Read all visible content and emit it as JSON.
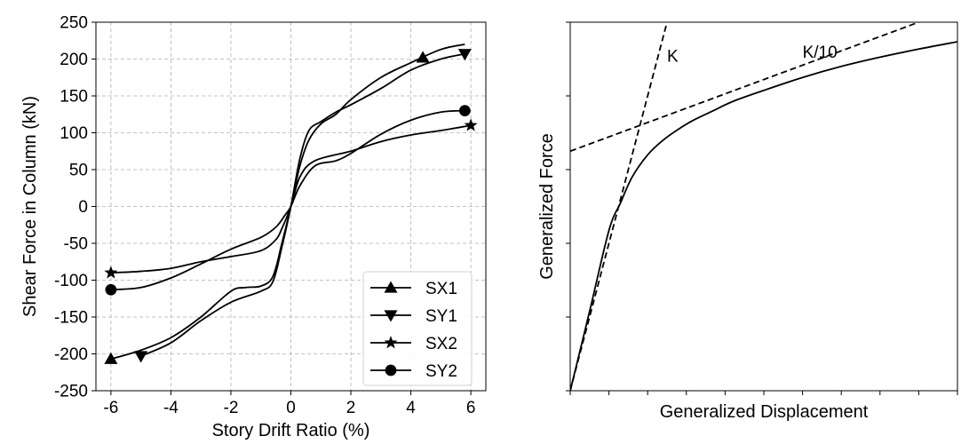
{
  "chart_data": [
    {
      "type": "line",
      "xlabel": "Story Drift Ratio (%)",
      "ylabel": "Shear Force in Column (kN)",
      "xlim": [
        -6.5,
        6.5
      ],
      "ylim": [
        -250,
        250
      ],
      "xticks": [
        -6,
        -4,
        -2,
        0,
        2,
        4,
        6
      ],
      "yticks": [
        -250,
        -200,
        -150,
        -100,
        -50,
        0,
        50,
        100,
        150,
        200,
        250
      ],
      "grid": true,
      "legend_position": "lower-right",
      "series": [
        {
          "name": "SX1",
          "marker": "triangle-up",
          "x": [
            -6.0,
            -5.0,
            -4.0,
            -3.0,
            -2.0,
            -1.5,
            -1.0,
            -0.6,
            -0.3,
            0,
            0.3,
            0.6,
            1.0,
            1.5,
            2.0,
            3.0,
            4.0,
            5.0,
            5.8
          ],
          "y": [
            -207,
            -195,
            -178,
            -150,
            -115,
            -110,
            -108,
            -95,
            -50,
            0,
            55,
            90,
            112,
            125,
            145,
            175,
            195,
            213,
            220
          ],
          "marker_points": [
            [
              -6.0,
              -207
            ],
            [
              4.4,
              202
            ]
          ]
        },
        {
          "name": "SY1",
          "marker": "triangle-down",
          "x": [
            -5.0,
            -4.0,
            -3.0,
            -2.0,
            -1.0,
            -0.6,
            -0.3,
            0,
            0.3,
            0.6,
            1.0,
            1.5,
            2.0,
            3.0,
            4.0,
            5.0,
            5.8
          ],
          "y": [
            -203,
            -185,
            -155,
            -130,
            -115,
            -102,
            -55,
            0,
            65,
            103,
            115,
            128,
            138,
            160,
            185,
            200,
            207
          ],
          "marker_points": [
            [
              -5.0,
              -203
            ],
            [
              5.8,
              207
            ]
          ]
        },
        {
          "name": "SX2",
          "marker": "star",
          "x": [
            -6.0,
            -5.0,
            -4.0,
            -3.0,
            -2.0,
            -1.0,
            -0.5,
            -0.3,
            0,
            0.3,
            0.8,
            2.0,
            3.0,
            4.0,
            5.0,
            6.0
          ],
          "y": [
            -90,
            -88,
            -84,
            -75,
            -68,
            -60,
            -45,
            -30,
            0,
            40,
            62,
            75,
            88,
            97,
            103,
            110
          ],
          "marker_points": [
            [
              -6.0,
              -90
            ],
            [
              6.0,
              110
            ]
          ]
        },
        {
          "name": "SY2",
          "marker": "circle",
          "x": [
            -6.0,
            -5.0,
            -4.0,
            -3.0,
            -2.0,
            -1.0,
            -0.5,
            -0.2,
            0,
            0.3,
            0.8,
            1.5,
            2.0,
            3.0,
            4.0,
            5.0,
            5.8
          ],
          "y": [
            -113,
            -110,
            -97,
            -78,
            -58,
            -42,
            -28,
            -12,
            0,
            28,
            55,
            62,
            72,
            98,
            117,
            128,
            130
          ],
          "marker_points": [
            [
              -6.0,
              -113
            ],
            [
              5.8,
              130
            ]
          ]
        }
      ]
    },
    {
      "type": "line",
      "xlabel": "Generalized Displacement",
      "ylabel": "Generalized Force",
      "xlim": [
        0,
        10
      ],
      "ylim": [
        0,
        10
      ],
      "xticks": [
        0,
        1,
        2,
        3,
        4,
        5,
        6,
        7,
        8,
        9,
        10
      ],
      "yticks": [
        0,
        2,
        4,
        6,
        8,
        10
      ],
      "tick_labels_shown": false,
      "grid": false,
      "series": [
        {
          "curve": "pushover-curve",
          "style": "solid",
          "x": [
            0,
            0.5,
            1.0,
            1.3,
            1.6,
            2.0,
            2.4,
            2.8,
            3.2,
            3.7,
            4.2,
            5.0,
            6.0,
            7.0,
            8.0,
            9.0,
            10.0
          ],
          "y": [
            0,
            2.15,
            4.35,
            5.1,
            5.8,
            6.4,
            6.8,
            7.1,
            7.35,
            7.6,
            7.85,
            8.15,
            8.5,
            8.8,
            9.05,
            9.27,
            9.47
          ]
        },
        {
          "curve": "initial-stiffness-line",
          "style": "dashed",
          "x": [
            0,
            2.5
          ],
          "y": [
            0,
            10
          ]
        },
        {
          "curve": "secondary-stiffness-line",
          "style": "dashed",
          "x": [
            0,
            9.0
          ],
          "y": [
            6.5,
            10
          ]
        }
      ],
      "annotations": [
        {
          "text": "K",
          "x": 2.5,
          "y": 9.1
        },
        {
          "text": "K/10",
          "x": 6.0,
          "y": 9.2
        }
      ]
    }
  ]
}
